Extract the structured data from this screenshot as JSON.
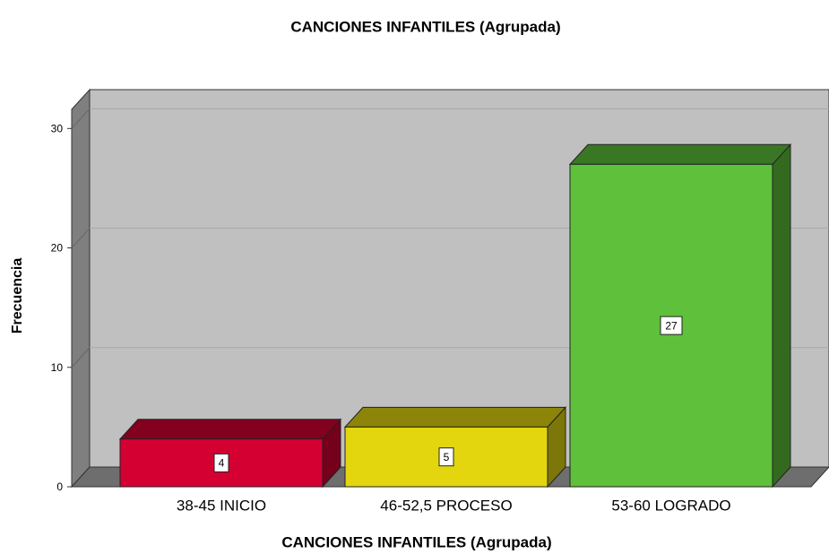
{
  "chart_data": {
    "type": "bar3d",
    "title": "CANCIONES INFANTILES (Agrupada)",
    "x_label": "CANCIONES INFANTILES (Agrupada)",
    "y_label": "Frecuencia",
    "categories": [
      "38-45 INICIO",
      "46-52,5 PROCESO",
      "53-60 LOGRADO"
    ],
    "values": [
      4,
      5,
      27
    ],
    "colors": [
      "#d50032",
      "#e3d60f",
      "#5ec03b"
    ],
    "ylim": [
      0,
      31.6
    ],
    "yticks": [
      0,
      10,
      20,
      30
    ],
    "grid": true
  }
}
